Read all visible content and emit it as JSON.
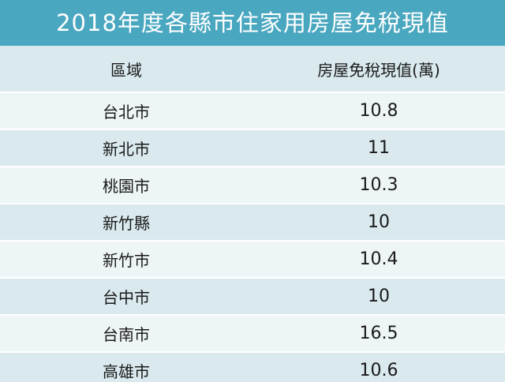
{
  "title": "2018年度各縣市住家用房屋免稅現值",
  "table": {
    "headers": [
      "區域",
      "房屋免稅現值(萬)"
    ],
    "rows": [
      {
        "region": "台北市",
        "value": "10.8"
      },
      {
        "region": "新北市",
        "value": "11"
      },
      {
        "region": "桃園市",
        "value": "10.3"
      },
      {
        "region": "新竹縣",
        "value": "10"
      },
      {
        "region": "新竹市",
        "value": "10.4"
      },
      {
        "region": "台中市",
        "value": "10"
      },
      {
        "region": "台南市",
        "value": "16.5"
      },
      {
        "region": "高雄市",
        "value": "10.6"
      }
    ]
  },
  "colors": {
    "title_bg": "#4aa7c0",
    "row_dark": "#d9e9ee",
    "row_light": "#eef5f7"
  }
}
